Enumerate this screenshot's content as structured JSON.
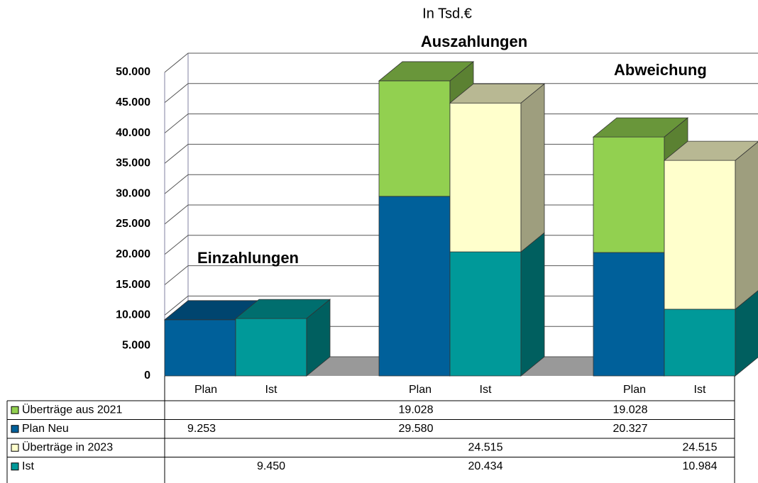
{
  "chart_data": {
    "type": "bar3d_stacked",
    "title": "In Tsd.€",
    "group_labels": [
      "Einzahlungen",
      "Auszahlungen",
      "Abweichung"
    ],
    "categories": [
      "Plan",
      "Ist",
      "Plan",
      "Ist",
      "Plan",
      "Ist"
    ],
    "series": [
      {
        "name": "Überträge aus 2021",
        "color": "#92d050",
        "values": [
          null,
          null,
          19028,
          null,
          19028,
          null
        ],
        "value_labels": [
          null,
          null,
          "19.028",
          null,
          "19.028",
          null
        ]
      },
      {
        "name": "Plan Neu",
        "color": "#00609a",
        "values": [
          9253,
          null,
          29580,
          null,
          20327,
          null
        ],
        "value_labels": [
          "9.253",
          null,
          "29.580",
          null,
          "20.327",
          null
        ]
      },
      {
        "name": "Überträge in 2023",
        "color": "#ffffcc",
        "values": [
          null,
          null,
          null,
          24515,
          null,
          24515
        ],
        "value_labels": [
          null,
          null,
          null,
          "24.515",
          null,
          "24.515"
        ]
      },
      {
        "name": "Ist",
        "color": "#009999",
        "values": [
          null,
          9450,
          null,
          20434,
          null,
          10984
        ],
        "value_labels": [
          null,
          "9.450",
          null,
          "20.434",
          null,
          "10.984"
        ]
      }
    ],
    "stack_order": [
      1,
      3,
      0,
      2
    ],
    "ylim": [
      0,
      50000
    ],
    "yticks": [
      0,
      {
        "value": 5000,
        "label": "5.000"
      },
      {
        "value": 10000,
        "label": "10.000"
      },
      {
        "value": 15000,
        "label": "15.000"
      },
      {
        "value": 20000,
        "label": "20.000"
      },
      {
        "value": 25000,
        "label": "25.000"
      },
      {
        "value": 30000,
        "label": "30.000"
      },
      {
        "value": 35000,
        "label": "35.000"
      },
      {
        "value": 40000,
        "label": "40.000"
      },
      {
        "value": 45000,
        "label": "45.000"
      },
      {
        "value": 50000,
        "label": "50.000"
      }
    ],
    "grid": true
  }
}
